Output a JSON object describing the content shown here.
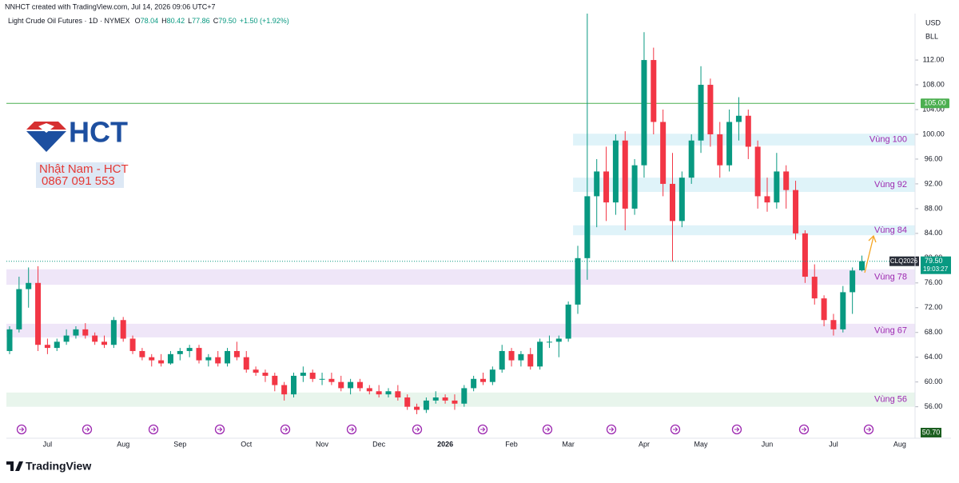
{
  "header": {
    "credit": "NNHCT created with TradingView.com, Jul 14, 2026 09:06 UTC+7",
    "brand": "TradingView"
  },
  "watermark": {
    "logo": "HCT",
    "name": "Nhật Nam - HCT",
    "phone": "0867 091 553"
  },
  "chart_data": {
    "type": "candlestick",
    "title": "Light Crude Oil Futures · 1D · NYMEX",
    "ohlc_legend": [
      {
        "key": "O",
        "value": "78.04"
      },
      {
        "key": "H",
        "value": "80.42"
      },
      {
        "key": "L",
        "value": "77.86"
      },
      {
        "key": "C",
        "value": "79.50"
      }
    ],
    "change": "+1.50 (+1.92%)",
    "currency": "USD",
    "unit": "BLL",
    "symbol_label": "CLQ2026",
    "last_price_label": "79.50",
    "countdown": "19:03:27",
    "scale_label": "50.70",
    "up_color": "#089981",
    "down_color": "#f23645",
    "categories": [
      null,
      null,
      null,
      null,
      "Jul",
      null,
      null,
      null,
      null,
      null,
      null,
      null,
      "Aug",
      null,
      null,
      null,
      null,
      null,
      "Sep",
      null,
      null,
      null,
      null,
      null,
      null,
      "Oct",
      null,
      null,
      null,
      null,
      null,
      null,
      null,
      "Nov",
      null,
      null,
      null,
      null,
      null,
      "Dec",
      null,
      null,
      null,
      null,
      null,
      null,
      "2026",
      null,
      null,
      null,
      null,
      null,
      null,
      "Feb",
      null,
      null,
      null,
      null,
      null,
      "Mar",
      null,
      null,
      null,
      null,
      null,
      null,
      null,
      "Apr",
      null,
      null,
      null,
      null,
      null,
      "May",
      null,
      null,
      null,
      null,
      null,
      null,
      "Jun",
      null,
      null,
      null,
      null,
      null,
      null,
      "Jul",
      null,
      null,
      null,
      null,
      null,
      null,
      "Aug",
      null
    ],
    "open": [
      65,
      68.5,
      75,
      76,
      66,
      65.5,
      66.5,
      67.5,
      68.5,
      67.5,
      66.5,
      66,
      70,
      67,
      65,
      64,
      63.5,
      63,
      64.5,
      65,
      65.5,
      63.5,
      64,
      63,
      65,
      64,
      62,
      61.5,
      61,
      59.5,
      58,
      61,
      61.5,
      60.5,
      60.5,
      60,
      59,
      60,
      59,
      58.5,
      58,
      58.5,
      57.5,
      56,
      55.5,
      57,
      57.5,
      57,
      56.5,
      59,
      60.5,
      60,
      62,
      65,
      63.5,
      64.5,
      62.5,
      66.5,
      66.5,
      67,
      72.5,
      80,
      90,
      94,
      89,
      99,
      88,
      95,
      112,
      102,
      92,
      86,
      93,
      99,
      108,
      100,
      95,
      102,
      103,
      98,
      90,
      89,
      94,
      91,
      84,
      77,
      73.5,
      70,
      68.5,
      74.5,
      78.04,
      null,
      null,
      null,
      null,
      null
    ],
    "high": [
      69,
      77,
      78.5,
      78.7,
      67,
      67,
      68.5,
      69,
      69.5,
      68,
      67.5,
      70.5,
      70.5,
      67.5,
      65.5,
      64.5,
      64.5,
      65,
      65.5,
      66,
      66,
      64.5,
      65,
      65.5,
      66.5,
      65,
      62.5,
      62,
      61.5,
      60,
      61.5,
      62.5,
      62,
      61.5,
      61.5,
      61,
      60.5,
      60.5,
      59.5,
      59.5,
      59,
      59.5,
      58,
      56.5,
      57.5,
      58.5,
      58,
      58,
      59.5,
      61,
      61.5,
      62.5,
      66,
      65.5,
      65,
      65.5,
      67,
      67.5,
      67.5,
      73,
      82,
      119.5,
      96,
      98,
      100,
      100.5,
      96,
      116.5,
      114,
      104,
      97,
      94,
      100,
      111,
      109,
      102,
      104,
      106,
      104,
      99,
      93,
      97,
      95,
      92.5,
      84.5,
      79,
      74,
      71,
      75.5,
      78.5,
      80.42,
      null,
      null,
      null,
      null,
      null
    ],
    "low": [
      64.5,
      68,
      72,
      65,
      64.5,
      65,
      66,
      67,
      67,
      66,
      65.5,
      65.5,
      66.5,
      64.5,
      63.5,
      62.5,
      62.5,
      62.8,
      63.5,
      64,
      63,
      62.5,
      62.5,
      62.5,
      63.5,
      61.5,
      61,
      60,
      58.5,
      57,
      57.5,
      60,
      60,
      59.5,
      59.5,
      58.5,
      58,
      58.5,
      58,
      57.5,
      57.5,
      57,
      55.5,
      54.8,
      55,
      56.5,
      56.5,
      55.5,
      56,
      58.5,
      59.5,
      59.5,
      61.5,
      62.5,
      62.5,
      62,
      62,
      65.5,
      64,
      66.5,
      71,
      76.5,
      85,
      86,
      87,
      84.5,
      87,
      93,
      100,
      90,
      79.5,
      85,
      92,
      97,
      98,
      93,
      94,
      99,
      96,
      88,
      87.5,
      88,
      88,
      83,
      76,
      72.5,
      69,
      67.5,
      68,
      71,
      77.86,
      null,
      null,
      null,
      null,
      null
    ],
    "close": [
      68.5,
      75,
      76,
      66,
      65.5,
      66.5,
      67.5,
      68.5,
      67.5,
      66.5,
      66,
      70,
      67,
      65,
      64,
      63.5,
      63,
      64.5,
      65,
      65.5,
      63.5,
      64,
      63,
      65,
      64,
      62,
      61.5,
      61,
      59.5,
      58,
      61,
      61.5,
      60.5,
      60.5,
      60,
      59,
      60,
      59,
      58.5,
      58,
      58.5,
      57.5,
      56,
      55.5,
      57,
      57.5,
      57,
      56.5,
      59,
      60.5,
      60,
      62,
      65,
      63.5,
      64.5,
      62.5,
      66.5,
      66.5,
      67,
      72.5,
      80,
      90,
      94,
      89,
      99,
      88,
      95,
      112,
      102,
      92,
      86,
      93,
      99,
      108,
      100,
      95,
      102,
      103,
      98,
      90,
      89,
      94,
      91,
      84,
      77,
      73.5,
      70,
      68.5,
      74.5,
      78,
      79.5,
      null,
      null,
      null,
      null,
      null
    ],
    "ylim": [
      53.5,
      119.5
    ],
    "yticks": [
      {
        "value": 56,
        "label": "56.00"
      },
      {
        "value": 60,
        "label": "60.00"
      },
      {
        "value": 64,
        "label": "64.00"
      },
      {
        "value": 68,
        "label": "68.00"
      },
      {
        "value": 72,
        "label": "72.00"
      },
      {
        "value": 76,
        "label": "76.00"
      },
      {
        "value": 80,
        "label": "80.00"
      },
      {
        "value": 84,
        "label": "84.00"
      },
      {
        "value": 88,
        "label": "88.00"
      },
      {
        "value": 92,
        "label": "92.00"
      },
      {
        "value": 96,
        "label": "96.00"
      },
      {
        "value": 100,
        "label": "100.00"
      },
      {
        "value": 104,
        "label": "104.00"
      },
      {
        "value": 108,
        "label": "108.00"
      },
      {
        "value": 112,
        "label": "112.00"
      }
    ],
    "grid": false,
    "hlines": [
      {
        "value": 105,
        "label": "105.00",
        "color": "#4caf50"
      }
    ],
    "zones": [
      {
        "name": "Vùng 100",
        "low": 98.2,
        "high": 100.1,
        "from": 60,
        "color": "#dff3f9"
      },
      {
        "name": "Vùng 92",
        "low": 90.7,
        "high": 93,
        "from": 60,
        "color": "#dff3f9"
      },
      {
        "name": "Vùng 84",
        "low": 83.7,
        "high": 85.3,
        "from": 60,
        "color": "#dff3f9"
      },
      {
        "name": "Vùng 78",
        "low": 75.7,
        "high": 78.2,
        "from": 0,
        "color": "#efe6f8"
      },
      {
        "name": "Vùng 67",
        "low": 67.2,
        "high": 69.4,
        "from": 0,
        "color": "#efe6f8"
      },
      {
        "name": "Vùng 56",
        "low": 56,
        "high": 58.3,
        "from": 0,
        "color": "#e8f5ec"
      }
    ]
  }
}
